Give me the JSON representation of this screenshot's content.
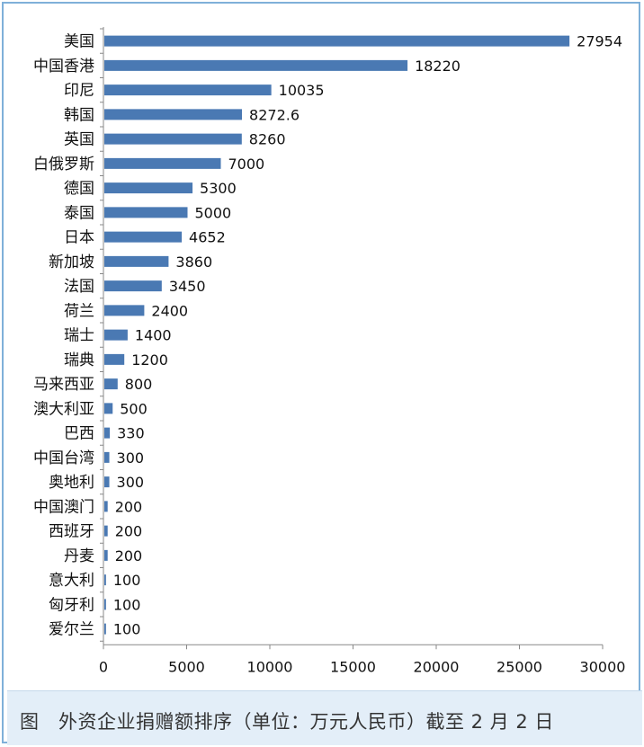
{
  "caption": "图　外资企业捐赠额排序（单位：万元人民币）截至 2 月 2 日",
  "chart_data": {
    "type": "bar",
    "orientation": "horizontal",
    "categories": [
      "美国",
      "中国香港",
      "印尼",
      "韩国",
      "英国",
      "白俄罗斯",
      "德国",
      "泰国",
      "日本",
      "新加坡",
      "法国",
      "荷兰",
      "瑞士",
      "瑞典",
      "马来西亚",
      "澳大利亚",
      "巴西",
      "中国台湾",
      "奥地利",
      "中国澳门",
      "西班牙",
      "丹麦",
      "意大利",
      "匈牙利",
      "爱尔兰"
    ],
    "values": [
      27954,
      18220,
      10035,
      8272.6,
      8260,
      7000,
      5300,
      5000,
      4652,
      3860,
      3450,
      2400,
      1400,
      1200,
      800,
      500,
      330,
      300,
      300,
      200,
      200,
      200,
      100,
      100,
      100
    ],
    "value_labels": [
      "27954",
      "18220",
      "10035",
      "8272.6",
      "8260",
      "7000",
      "5300",
      "5000",
      "4652",
      "3860",
      "3450",
      "2400",
      "1400",
      "1200",
      "800",
      "500",
      "330",
      "300",
      "300",
      "200",
      "200",
      "200",
      "100",
      "100",
      "100"
    ],
    "x_ticks": [
      "0",
      "5000",
      "10000",
      "15000",
      "20000",
      "25000",
      "30000"
    ],
    "xlim": [
      0,
      30000
    ],
    "bar_color": "#4a79b3",
    "grid": false,
    "legend": "none"
  }
}
